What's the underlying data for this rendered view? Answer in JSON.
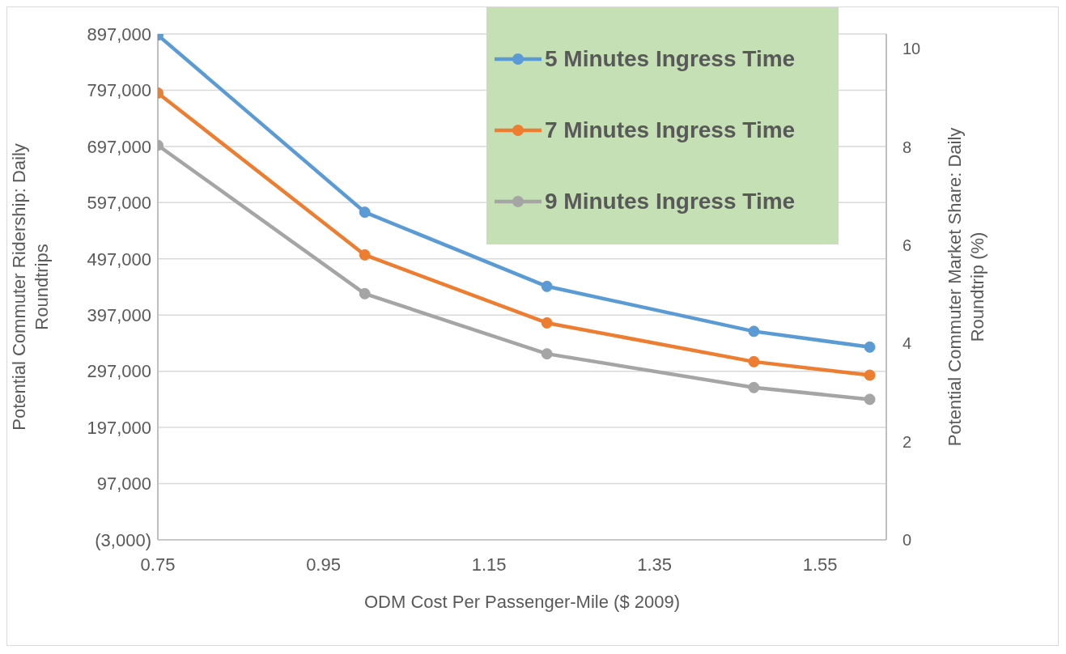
{
  "chart_data": {
    "type": "line",
    "xlabel": "ODM Cost Per Passenger-Mile ($ 2009)",
    "ylabel": "Potential Commuter Ridership: Daily Roundtrips",
    "y2label": "Potential Commuter Market Share: Daily Roundtrip (%)",
    "x": [
      0.75,
      1.0,
      1.22,
      1.47,
      1.61
    ],
    "series": [
      {
        "name": "5 Minutes Ingress Time",
        "color": "#5b9bd5",
        "values": [
          895000,
          580000,
          448000,
          368000,
          340000
        ]
      },
      {
        "name": "7 Minutes Ingress Time",
        "color": "#ed7d31",
        "values": [
          792000,
          504000,
          383000,
          314000,
          290000
        ]
      },
      {
        "name": "9 Minutes Ingress Time",
        "color": "#a5a5a5",
        "values": [
          699000,
          435000,
          328000,
          268000,
          247000
        ]
      }
    ],
    "xlim": [
      0.75,
      1.63
    ],
    "xticks": [
      0.75,
      0.95,
      1.15,
      1.35,
      1.55
    ],
    "ylim": [
      -3000,
      897000
    ],
    "yticks": [
      {
        "value": -3000,
        "label": "(3,000)"
      },
      {
        "value": 97000,
        "label": "97,000"
      },
      {
        "value": 197000,
        "label": "197,000"
      },
      {
        "value": 297000,
        "label": "297,000"
      },
      {
        "value": 397000,
        "label": "397,000"
      },
      {
        "value": 497000,
        "label": "497,000"
      },
      {
        "value": 597000,
        "label": "597,000"
      },
      {
        "value": 697000,
        "label": "697,000"
      },
      {
        "value": 797000,
        "label": "797,000"
      },
      {
        "value": 897000,
        "label": "897,000"
      }
    ],
    "y2lim": [
      0,
      10.3
    ],
    "y2ticks": [
      0,
      2,
      4,
      6,
      8,
      10
    ],
    "grid": "y",
    "legend": "top right",
    "marker": "circle",
    "line_style": "solid"
  }
}
